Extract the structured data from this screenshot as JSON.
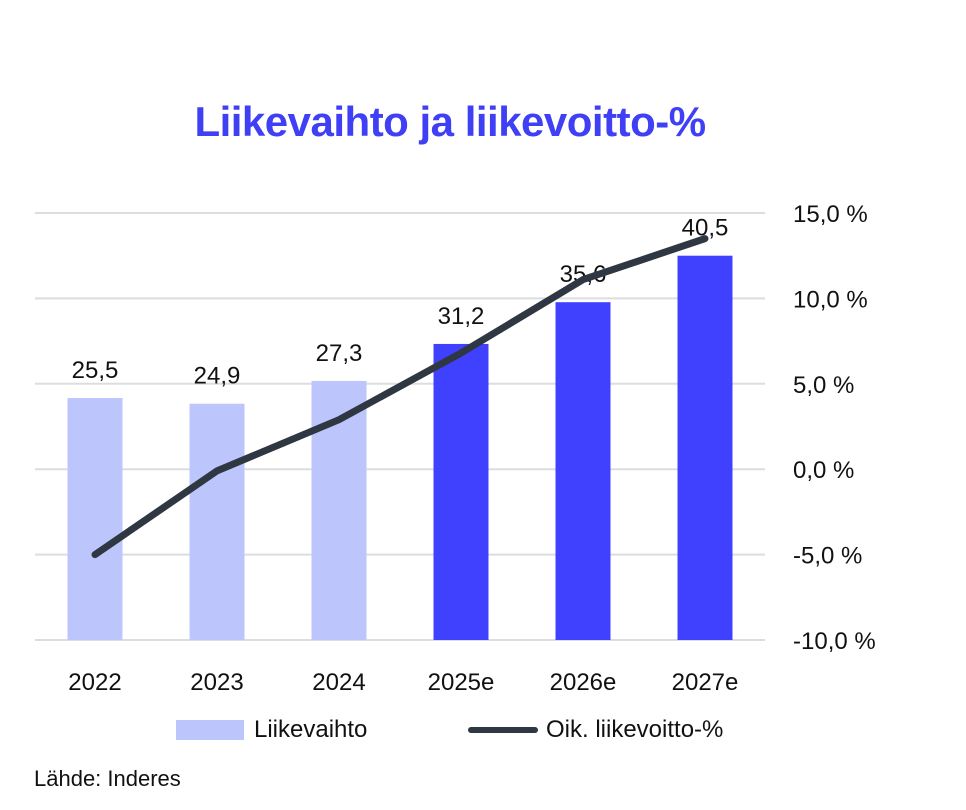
{
  "chart_data": {
    "type": "bar+line",
    "title": "Liikevaihto ja liikevoitto-%",
    "categories": [
      "2022",
      "2023",
      "2024",
      "2025e",
      "2026e",
      "2027e"
    ],
    "series": [
      {
        "name": "Liikevaihto",
        "type": "bar",
        "axis": "left",
        "values": [
          25.5,
          24.9,
          27.3,
          31.2,
          35.6,
          40.5
        ],
        "labels": [
          "25,5",
          "24,9",
          "27,3",
          "31,2",
          "35,6",
          "40,5"
        ],
        "colors": [
          "#bcc6fc",
          "#bcc6fc",
          "#bcc6fc",
          "#4040ff",
          "#4040ff",
          "#4040ff"
        ]
      },
      {
        "name": "Oik. liikevoitto-%",
        "type": "line",
        "axis": "right",
        "values": [
          -5.0,
          -0.1,
          2.9,
          6.8,
          11.1,
          13.5
        ],
        "color": "#2f3742"
      }
    ],
    "left_ylim": [
      0,
      45
    ],
    "right_ylim": [
      -10,
      15
    ],
    "right_ticks": [
      15,
      10,
      5,
      0,
      -5,
      -10
    ],
    "right_tick_labels": [
      "15,0 %",
      "10,0 %",
      "5,0 %",
      "0,0 %",
      "-5,0 %",
      "-10,0 %"
    ],
    "grid": true,
    "legend_placement": "bottom",
    "source": "Lähde: Inderes"
  }
}
